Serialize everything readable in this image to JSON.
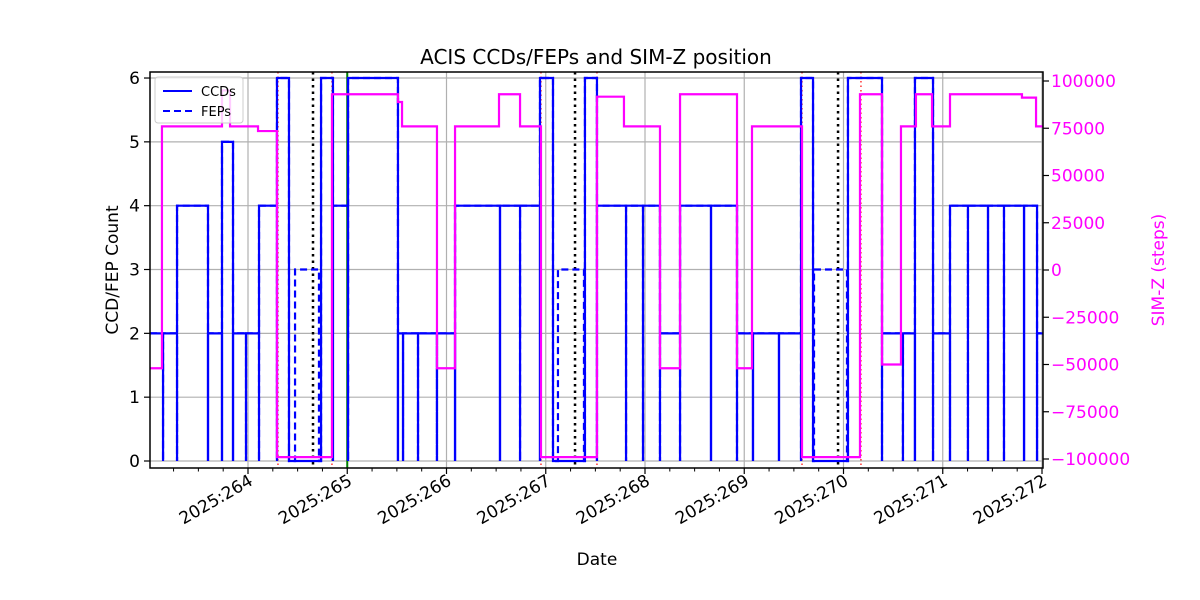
{
  "chart_data": {
    "type": "line",
    "title": "ACIS CCDs/FEPs and SIM-Z position",
    "xlabel": "Date",
    "ylabel": "CCD/FEP Count",
    "ylabel_right": "SIM-Z (steps)",
    "xlim": [
      263.013,
      272.01
    ],
    "ylim": [
      -0.1,
      6.1
    ],
    "ylim_right": [
      -105000,
      105000
    ],
    "x_ticks": [
      264,
      265,
      266,
      267,
      268,
      269,
      270,
      271,
      272
    ],
    "x_tick_labels": [
      "2025:264",
      "2025:265",
      "2025:266",
      "2025:267",
      "2025:268",
      "2025:269",
      "2025:270",
      "2025:271",
      "2025:272"
    ],
    "y_ticks": [
      0,
      1,
      2,
      3,
      4,
      5,
      6
    ],
    "y_tick_labels": [
      "0",
      "1",
      "2",
      "3",
      "4",
      "5",
      "6"
    ],
    "y_right_ticks": [
      100000,
      75000,
      50000,
      25000,
      0,
      -25000,
      -50000,
      -75000,
      -100000
    ],
    "y_right_tick_labels": [
      "100000",
      "75000",
      "50000",
      "25000",
      "0",
      "−25000",
      "−50000",
      "−75000",
      "−100000"
    ],
    "grid": true,
    "legend_position": "top-left",
    "colors": {
      "ccd": "#0000ff",
      "simz": "#ff00ff",
      "grid": "#b0b0b0",
      "dotted": "#000000",
      "red": "#ff0000",
      "green": "#008000"
    },
    "series": [
      {
        "name": "CCDs",
        "style": "solid",
        "axis": "left",
        "steps": [
          [
            263.013,
            2
          ],
          [
            263.144,
            2
          ],
          [
            263.285,
            4
          ],
          [
            263.597,
            2
          ],
          [
            263.738,
            5
          ],
          [
            263.849,
            2
          ],
          [
            263.98,
            2
          ],
          [
            264.111,
            4
          ],
          [
            264.292,
            6
          ],
          [
            264.413,
            0
          ],
          [
            264.736,
            6
          ],
          [
            264.856,
            4
          ],
          [
            265.008,
            6
          ],
          [
            265.511,
            2
          ],
          [
            265.562,
            2
          ],
          [
            265.713,
            2
          ],
          [
            265.904,
            2
          ],
          [
            266.086,
            4
          ],
          [
            266.539,
            4
          ],
          [
            266.741,
            4
          ],
          [
            266.942,
            6
          ],
          [
            267.073,
            0
          ],
          [
            267.395,
            6
          ],
          [
            267.516,
            4
          ],
          [
            267.809,
            4
          ],
          [
            267.98,
            4
          ],
          [
            268.151,
            2
          ],
          [
            268.353,
            4
          ],
          [
            268.665,
            4
          ],
          [
            268.927,
            2
          ],
          [
            269.088,
            2
          ],
          [
            269.35,
            2
          ],
          [
            269.572,
            6
          ],
          [
            269.693,
            0
          ],
          [
            270.045,
            6
          ],
          [
            270.388,
            2
          ],
          [
            270.599,
            2
          ],
          [
            270.72,
            6
          ],
          [
            270.902,
            2
          ],
          [
            271.073,
            4
          ],
          [
            271.254,
            4
          ],
          [
            271.456,
            4
          ],
          [
            271.617,
            4
          ],
          [
            271.819,
            4
          ],
          [
            271.95,
            2
          ],
          [
            272.01,
            2
          ]
        ]
      },
      {
        "name": "FEPs",
        "style": "dashed",
        "axis": "left",
        "steps": [
          [
            263.013,
            2
          ],
          [
            263.144,
            2
          ],
          [
            263.285,
            4
          ],
          [
            263.597,
            2
          ],
          [
            263.738,
            5
          ],
          [
            263.849,
            2
          ],
          [
            263.98,
            2
          ],
          [
            264.111,
            4
          ],
          [
            264.292,
            6
          ],
          [
            264.413,
            0
          ],
          [
            264.474,
            3
          ],
          [
            264.715,
            0
          ],
          [
            264.736,
            6
          ],
          [
            264.856,
            4
          ],
          [
            265.008,
            6
          ],
          [
            265.511,
            2
          ],
          [
            265.562,
            2
          ],
          [
            265.713,
            2
          ],
          [
            265.904,
            2
          ],
          [
            266.086,
            4
          ],
          [
            266.539,
            4
          ],
          [
            266.741,
            4
          ],
          [
            266.942,
            6
          ],
          [
            267.073,
            0
          ],
          [
            267.123,
            3
          ],
          [
            267.385,
            0
          ],
          [
            267.395,
            6
          ],
          [
            267.516,
            4
          ],
          [
            267.809,
            4
          ],
          [
            267.98,
            4
          ],
          [
            268.151,
            2
          ],
          [
            268.353,
            4
          ],
          [
            268.665,
            4
          ],
          [
            268.927,
            2
          ],
          [
            269.088,
            2
          ],
          [
            269.35,
            2
          ],
          [
            269.572,
            6
          ],
          [
            269.693,
            0
          ],
          [
            269.703,
            3
          ],
          [
            270.035,
            0
          ],
          [
            270.045,
            6
          ],
          [
            270.388,
            2
          ],
          [
            270.599,
            2
          ],
          [
            270.72,
            6
          ],
          [
            270.902,
            2
          ],
          [
            271.073,
            4
          ],
          [
            271.254,
            4
          ],
          [
            271.456,
            4
          ],
          [
            271.617,
            4
          ],
          [
            271.819,
            4
          ],
          [
            271.95,
            2
          ],
          [
            272.01,
            2
          ]
        ]
      },
      {
        "name": "SIM-Z",
        "style": "solid",
        "axis": "right",
        "steps": [
          [
            263.013,
            -52000
          ],
          [
            263.133,
            76000
          ],
          [
            263.738,
            95000
          ],
          [
            263.819,
            76000
          ],
          [
            264.101,
            73500
          ],
          [
            264.292,
            -99000
          ],
          [
            264.846,
            93000
          ],
          [
            265.511,
            88900
          ],
          [
            265.552,
            76000
          ],
          [
            265.904,
            -52000
          ],
          [
            266.086,
            76000
          ],
          [
            266.529,
            93000
          ],
          [
            266.741,
            76000
          ],
          [
            266.952,
            -99000
          ],
          [
            267.516,
            91700
          ],
          [
            267.788,
            76000
          ],
          [
            268.151,
            -52000
          ],
          [
            268.353,
            93000
          ],
          [
            268.927,
            -52000
          ],
          [
            269.078,
            76000
          ],
          [
            269.582,
            -99000
          ],
          [
            270.166,
            93000
          ],
          [
            270.388,
            -50000
          ],
          [
            270.579,
            76000
          ],
          [
            270.73,
            93000
          ],
          [
            270.892,
            76000
          ],
          [
            271.073,
            93000
          ],
          [
            271.798,
            91200
          ],
          [
            271.94,
            76000
          ],
          [
            272.01,
            76000
          ]
        ]
      }
    ],
    "vlines": {
      "black_dotted": [
        264.655,
        267.295,
        269.945
      ],
      "red_dotted": [
        264.302,
        264.846,
        266.952,
        267.516,
        269.582,
        270.176
      ],
      "green_solid": [
        265.0
      ]
    },
    "legend": [
      "CCDs",
      "FEPs"
    ]
  }
}
